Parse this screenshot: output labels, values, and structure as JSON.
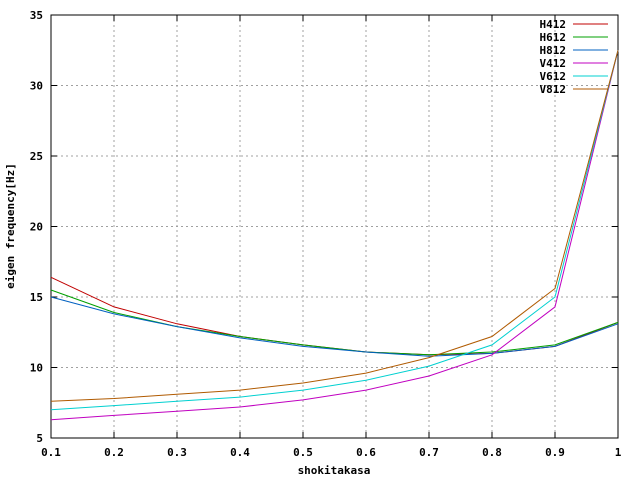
{
  "chart_data": {
    "type": "line",
    "title": "",
    "xlabel": "shokitakasa",
    "ylabel": "eigen frequency[Hz]",
    "xlim": [
      0.1,
      1
    ],
    "ylim": [
      5,
      35
    ],
    "grid": true,
    "legend_position": "top-right",
    "x_ticks": [
      "0.1",
      "0.2",
      "0.3",
      "0.4",
      "0.5",
      "0.6",
      "0.7",
      "0.8",
      "0.9",
      "1"
    ],
    "y_ticks": [
      "5",
      "10",
      "15",
      "20",
      "25",
      "30",
      "35"
    ],
    "x": [
      0.1,
      0.2,
      0.3,
      0.4,
      0.5,
      0.6,
      0.7,
      0.8,
      0.9,
      1.0
    ],
    "series": [
      {
        "name": "H412",
        "color": "#c00000",
        "values": [
          16.4,
          14.3,
          13.1,
          12.2,
          11.6,
          11.1,
          10.9,
          11.0,
          11.5,
          13.2
        ]
      },
      {
        "name": "H612",
        "color": "#00a000",
        "values": [
          15.5,
          13.9,
          12.9,
          12.2,
          11.6,
          11.1,
          10.9,
          11.1,
          11.6,
          13.2
        ]
      },
      {
        "name": "H812",
        "color": "#0060c0",
        "values": [
          15.0,
          13.8,
          12.9,
          12.1,
          11.5,
          11.1,
          10.8,
          11.0,
          11.5,
          13.1
        ]
      },
      {
        "name": "V412",
        "color": "#c000c0",
        "values": [
          6.3,
          6.6,
          6.9,
          7.2,
          7.7,
          8.4,
          9.4,
          10.9,
          14.3,
          32.5
        ]
      },
      {
        "name": "V612",
        "color": "#00d0d0",
        "values": [
          7.0,
          7.3,
          7.6,
          7.9,
          8.4,
          9.1,
          10.1,
          11.6,
          15.0,
          32.5
        ]
      },
      {
        "name": "V812",
        "color": "#b05a00",
        "values": [
          7.6,
          7.8,
          8.1,
          8.4,
          8.9,
          9.6,
          10.7,
          12.2,
          15.6,
          32.5
        ]
      }
    ]
  }
}
